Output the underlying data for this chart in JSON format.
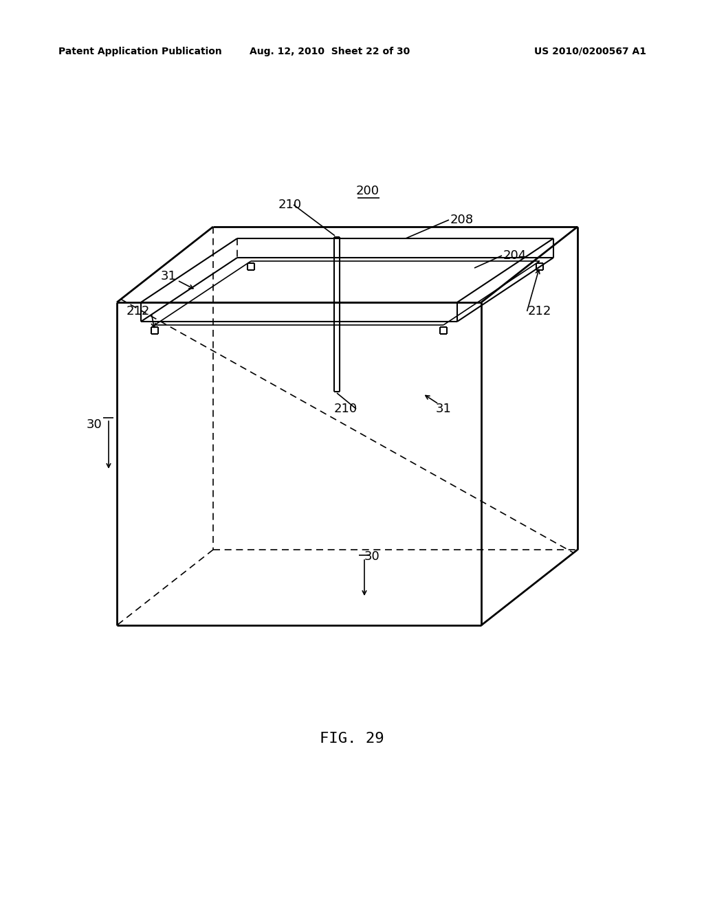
{
  "background_color": "#ffffff",
  "line_color": "#000000",
  "header_left": "Patent Application Publication",
  "header_center": "Aug. 12, 2010  Sheet 22 of 30",
  "header_right": "US 2010/0200567 A1",
  "figure_label": "FIG. 29",
  "ref_200": "200",
  "ref_210_top": "210",
  "ref_208": "208",
  "ref_204": "204",
  "ref_212_left": "212",
  "ref_212_right": "212",
  "ref_31_topleft": "31",
  "ref_31_bottomright": "31",
  "ref_30_left": "30",
  "ref_30_bottom": "30",
  "ref_210_bottom": "210"
}
